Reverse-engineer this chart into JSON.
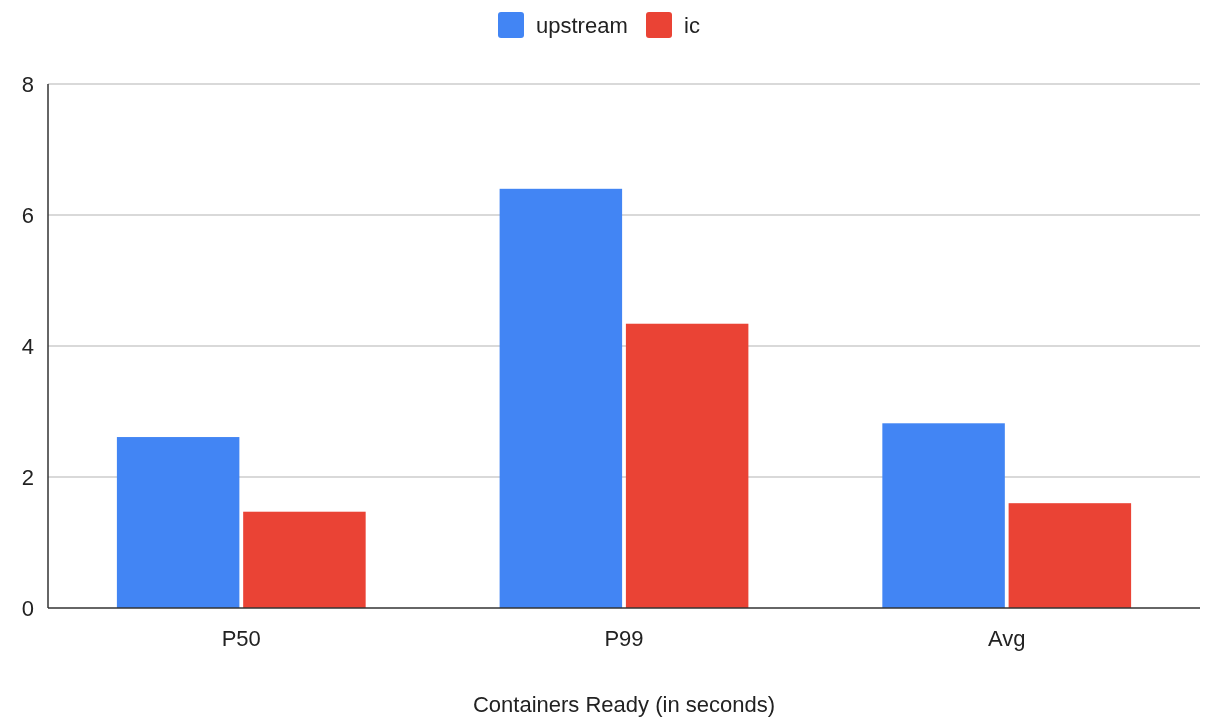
{
  "chart_data": {
    "type": "bar",
    "xlabel": "Containers Ready (in seconds)",
    "categories": [
      "P50",
      "P99",
      "Avg"
    ],
    "series": [
      {
        "name": "upstream",
        "color": "#4285f4",
        "values": [
          2.61,
          6.4,
          2.82
        ]
      },
      {
        "name": "ic",
        "color": "#ea4335",
        "values": [
          1.47,
          4.34,
          1.6
        ]
      }
    ],
    "ylim": [
      0,
      8
    ],
    "yticks": [
      0,
      2,
      4,
      6,
      8
    ],
    "grid": "y",
    "legend": "top"
  }
}
